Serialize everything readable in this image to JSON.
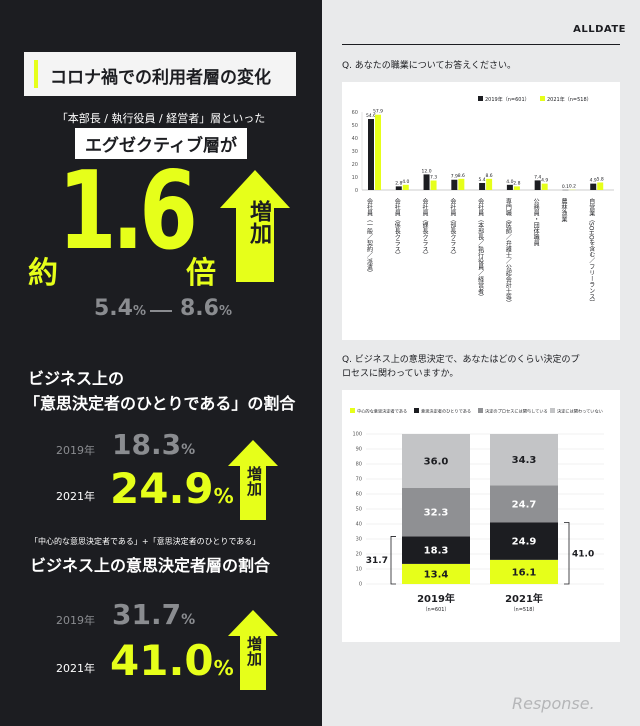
{
  "left": {
    "title": "コロナ禍での利用者層の変化",
    "exec_sub": "「本部長 / 執行役員 / 経営者」層といった",
    "exec_heading": "エグゼクティブ層が",
    "exec_prefix": "約",
    "exec_multiplier": "1.6",
    "exec_suffix": "倍",
    "exec_increase": "増加",
    "exec_from": "5.4",
    "exec_to": "8.6",
    "pct": "%",
    "sec2_line1": "ビジネス上の",
    "sec2_line2": "「意思決定者のひとりである」の割合",
    "sec2_year1": "2019",
    "sec2_year2": "2021",
    "year_unit": "年",
    "sec2_val1": "18.3",
    "sec2_val2": "24.9",
    "sec2_increase": "増加",
    "sec3_sub": "「中心的な意思決定者である」+「意思決定者のひとりである」",
    "sec3_heading": "ビジネス上の意思決定者層の割合",
    "sec3_year1": "2019",
    "sec3_year2": "2021",
    "sec3_val1": "31.7",
    "sec3_val2": "41.0",
    "sec3_increase": "増加"
  },
  "right": {
    "brand": "ALLDATE",
    "q1": "Q. あなたの職業についてお答えください。",
    "q2_line1": "Q. ビジネス上の意思決定で、あなたはどのくらい決定のプ",
    "q2_line2": "ロセスに関わっていますか。",
    "watermark": "Response."
  },
  "colors": {
    "accent": "#e6ff1a",
    "dark": "#1c1d21",
    "gray_mid": "#8f9093",
    "gray_light": "#c3c4c6"
  },
  "chart_data": [
    {
      "type": "bar",
      "legend_position": "top-right",
      "categories": [
        "会社員（一般／契約／派遣）",
        "会社員（係長クラス）",
        "会社員（課長クラス）",
        "会社員（部長クラス）",
        "会社員（本部長／執行役員／経営者）",
        "専門職（医師／弁護士／公認会計士等）",
        "公務員・団体職員",
        "農林漁業",
        "自営業（SOHOを含む／フリーランス）"
      ],
      "series": [
        {
          "name": "2019年（n=601）",
          "values": [
            54.6,
            2.8,
            12.0,
            7.9,
            5.4,
            4.0,
            7.4,
            0.1,
            4.9
          ]
        },
        {
          "name": "2021年（n=518）",
          "values": [
            57.9,
            4.0,
            7.3,
            8.6,
            8.6,
            2.8,
            4.9,
            0.2,
            5.8
          ]
        }
      ],
      "yticks": [
        0,
        10,
        20,
        30,
        40,
        50,
        60
      ],
      "ylim": [
        0,
        60
      ]
    },
    {
      "type": "bar",
      "stacked": true,
      "legend_position": "top",
      "categories": [
        "2019年",
        "2021年"
      ],
      "category_n": [
        "（n=601）",
        "（n=518）"
      ],
      "series": [
        {
          "name": "中心的な意思決定者である",
          "values": [
            13.4,
            16.1
          ]
        },
        {
          "name": "意思決定者のひとりである",
          "values": [
            18.3,
            24.9
          ]
        },
        {
          "name": "決定のプロセスには関与している",
          "values": [
            32.3,
            24.7
          ]
        },
        {
          "name": "決定には関わっていない",
          "values": [
            36.0,
            34.3
          ]
        }
      ],
      "bracket_totals": [
        "31.7",
        "41.0"
      ],
      "yticks": [
        0,
        10,
        20,
        30,
        40,
        50,
        60,
        70,
        80,
        90,
        100
      ],
      "ylim": [
        0,
        100
      ]
    }
  ]
}
